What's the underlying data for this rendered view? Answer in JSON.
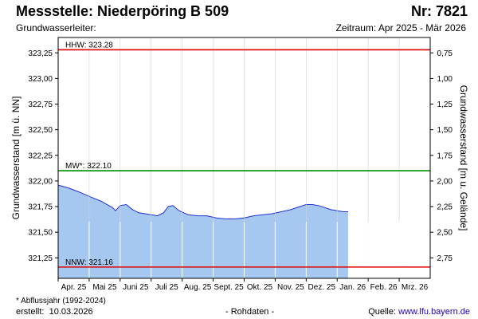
{
  "header": {
    "title": "Messstelle: Niederpöring B 509",
    "number": "Nr: 7821",
    "aquifer_label": "Grundwasserleiter:",
    "period": "Zeitraum: Apr 2025 - Mär 2026"
  },
  "footer": {
    "footnote": "* Abflussjahr (1992-2024)",
    "created_label": "erstellt:",
    "created_date": "10.03.2026",
    "raw_note": "- Rohdaten -",
    "source_label": "Quelle:",
    "source_link": "www.lfu.bayern.de"
  },
  "colors": {
    "area_fill": "#a6c8f0",
    "level_line": "#2030d8",
    "hhw": "#e00000",
    "mw": "#009000",
    "nnw": "#e00000",
    "grid": "#ffffff"
  },
  "chart_data": {
    "type": "area",
    "ylabel": "Grundwasserstand [m ü. NN]",
    "y2label": "Grundwasserstand [m u. Gelände]",
    "ylim": [
      321.05,
      323.4
    ],
    "yticks": [
      321.25,
      321.5,
      321.75,
      322.0,
      322.25,
      322.5,
      322.75,
      323.0,
      323.25
    ],
    "ytick_labels": [
      "321,25",
      "321,50",
      "321,75",
      "322,00",
      "322,25",
      "322,50",
      "322,75",
      "323,00",
      "323,25"
    ],
    "y2_ticks": [
      0.75,
      1.0,
      1.25,
      1.5,
      1.75,
      2.0,
      2.25,
      2.5,
      2.75
    ],
    "y2_tick_labels": [
      "0,75",
      "1,00",
      "1,25",
      "1,50",
      "1,75",
      "2,00",
      "2,25",
      "2,50",
      "2,75"
    ],
    "y2_reference": 324.0,
    "x_categories": [
      "Apr. 25",
      "Mai 25",
      "Juni 25",
      "Juli 25",
      "Aug. 25",
      "Sept. 25",
      "Okt. 25",
      "Nov. 25",
      "Dez. 25",
      "Jan. 26",
      "Feb. 26",
      "Mrz. 26"
    ],
    "grid": "vertical",
    "reference_lines": [
      {
        "label": "HHW: 323.28",
        "value": 323.28
      },
      {
        "label": "MW*: 322.10",
        "value": 322.1
      },
      {
        "label": "NNW: 321.16",
        "value": 321.16
      }
    ],
    "series": [
      {
        "x_months": [
          0,
          0.35,
          0.7,
          1.0,
          1.4,
          1.75,
          1.85,
          2.0,
          2.2,
          2.4,
          2.6,
          2.8,
          3.0,
          3.2,
          3.4,
          3.55,
          3.7,
          3.9,
          4.2,
          4.5,
          4.8,
          5.1,
          5.4,
          5.7,
          6.0,
          6.3,
          6.6,
          6.9,
          7.2,
          7.5,
          7.8,
          8.0,
          8.2,
          8.4,
          8.6,
          8.8,
          9.0,
          9.2,
          9.35
        ],
        "values": [
          321.96,
          321.93,
          321.89,
          321.85,
          321.8,
          321.74,
          321.71,
          321.76,
          321.77,
          321.72,
          321.69,
          321.68,
          321.67,
          321.66,
          321.69,
          321.75,
          321.76,
          321.71,
          321.67,
          321.66,
          321.66,
          321.64,
          321.63,
          321.63,
          321.64,
          321.66,
          321.67,
          321.68,
          321.7,
          321.72,
          321.75,
          321.77,
          321.77,
          321.76,
          321.74,
          321.72,
          321.71,
          321.7,
          321.7
        ]
      }
    ]
  }
}
